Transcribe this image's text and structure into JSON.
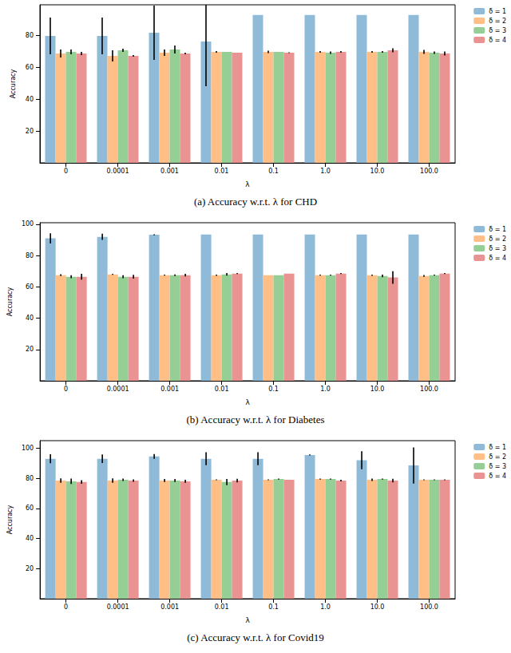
{
  "chart_data": [
    {
      "type": "bar",
      "title": "(a) Accuracy w.r.t. λ for CHD",
      "x_label": "λ",
      "y_label": "Accuracy",
      "categories": [
        "0",
        "0.0001",
        "0.001",
        "0.01",
        "0.1",
        "1.0",
        "10.0",
        "100.0"
      ],
      "series": [
        {
          "name": "δ = 1",
          "color": "#8fbbd9",
          "values": [
            79.5,
            79.5,
            81.5,
            76,
            92.6,
            92.6,
            92.6,
            92.6
          ],
          "errors": [
            11.5,
            11.5,
            17,
            28,
            0,
            0,
            0,
            0
          ]
        },
        {
          "name": "δ = 2",
          "color": "#ffbf86",
          "values": [
            68.5,
            67,
            69,
            69.5,
            69.5,
            69.5,
            69.5,
            69.5
          ],
          "errors": [
            2.5,
            3.5,
            2,
            0.5,
            0.8,
            0.5,
            0.5,
            1.2
          ]
        },
        {
          "name": "δ = 3",
          "color": "#95cf95",
          "values": [
            69.5,
            70.5,
            71,
            69.5,
            69.5,
            69,
            69.5,
            69
          ],
          "errors": [
            1.5,
            1,
            2.5,
            0,
            0,
            0.8,
            0.5,
            0.8
          ]
        },
        {
          "name": "δ = 4",
          "color": "#ea9393",
          "values": [
            68.5,
            67,
            68.5,
            69,
            69,
            69.5,
            70.5,
            68.5
          ],
          "errors": [
            1,
            0.5,
            0.5,
            0,
            0.3,
            0.5,
            1.2,
            1.2
          ]
        }
      ],
      "ylim": [
        0,
        99
      ],
      "yticks": [
        20,
        40,
        60,
        80
      ],
      "grid": false,
      "legend": "upper right"
    },
    {
      "type": "bar",
      "title": "(b) Accuracy w.r.t. λ for Diabetes",
      "x_label": "λ",
      "y_label": "Accuracy",
      "categories": [
        "0",
        "0.0001",
        "0.001",
        "0.01",
        "0.1",
        "1.0",
        "10.0",
        "100.0"
      ],
      "series": [
        {
          "name": "δ = 1",
          "color": "#8fbbd9",
          "values": [
            91,
            92,
            93.3,
            93.5,
            93.5,
            93.5,
            93.5,
            93.5
          ],
          "errors": [
            3.3,
            2,
            0.3,
            0,
            0,
            0,
            0,
            0
          ]
        },
        {
          "name": "δ = 2",
          "color": "#ffbf86",
          "values": [
            67.5,
            68,
            67.5,
            67.5,
            67.5,
            67.5,
            67.5,
            67
          ],
          "errors": [
            0.6,
            0.3,
            0.3,
            0.4,
            0,
            0.3,
            0.4,
            0.6
          ]
        },
        {
          "name": "δ = 3",
          "color": "#95cf95",
          "values": [
            66.5,
            66.5,
            67.5,
            68,
            67.5,
            67.5,
            67,
            67.5
          ],
          "errors": [
            1,
            1,
            0.5,
            0.8,
            0,
            0.3,
            0.8,
            0.3
          ]
        },
        {
          "name": "δ = 4",
          "color": "#ea9393",
          "values": [
            66.5,
            66.5,
            67.5,
            68.5,
            68.5,
            68.5,
            66,
            68.5
          ],
          "errors": [
            1.8,
            1.2,
            0.8,
            0.3,
            0,
            0.3,
            4,
            0.3
          ]
        }
      ],
      "ylim": [
        0,
        101
      ],
      "yticks": [
        20,
        40,
        60,
        80,
        100
      ],
      "grid": false,
      "legend": "upper right"
    },
    {
      "type": "bar",
      "title": "(c) Accuracy w.r.t. λ for Covid19",
      "x_label": "λ",
      "y_label": "Accuracy",
      "categories": [
        "0",
        "0.0001",
        "0.001",
        "0.01",
        "0.1",
        "1.0",
        "10.0",
        "100.0"
      ],
      "series": [
        {
          "name": "δ = 1",
          "color": "#8fbbd9",
          "values": [
            93,
            93,
            94.5,
            93,
            93,
            95.5,
            92,
            88.5
          ],
          "errors": [
            3,
            2.8,
            1.6,
            4.3,
            4.3,
            0.3,
            6,
            12
          ]
        },
        {
          "name": "δ = 2",
          "color": "#ffbf86",
          "values": [
            78.5,
            78.5,
            78.5,
            79,
            79,
            79.5,
            79,
            79
          ],
          "errors": [
            1.5,
            1.5,
            1,
            0.3,
            0.3,
            0.3,
            0.8,
            0.3
          ]
        },
        {
          "name": "δ = 3",
          "color": "#95cf95",
          "values": [
            78,
            79,
            78.5,
            77.5,
            79.5,
            79.5,
            79.5,
            79
          ],
          "errors": [
            1.8,
            0.8,
            1,
            2,
            0.3,
            0.3,
            0.3,
            0.3
          ]
        },
        {
          "name": "δ = 4",
          "color": "#ea9393",
          "values": [
            77.5,
            78.5,
            78,
            78.5,
            79,
            78.5,
            78.5,
            79
          ],
          "errors": [
            1.2,
            0.8,
            1,
            1.2,
            0,
            0.5,
            1.2,
            0.3
          ]
        }
      ],
      "ylim": [
        0,
        105
      ],
      "yticks": [
        20,
        40,
        60,
        80,
        100
      ],
      "grid": false,
      "legend": "upper right"
    }
  ]
}
